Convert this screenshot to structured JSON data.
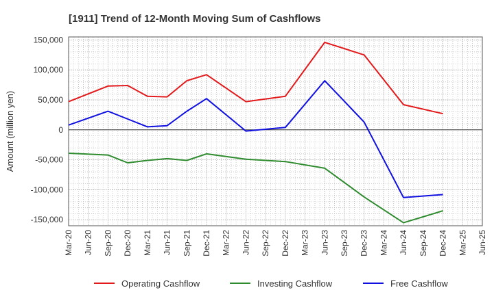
{
  "chart_data": {
    "type": "line",
    "title": "[1911]  Trend of 12-Month Moving Sum of Cashflows",
    "xlabel": "",
    "ylabel": "Amount (million yen)",
    "ylim": [
      -160000,
      155000
    ],
    "yticks": [
      150000,
      100000,
      50000,
      0,
      -50000,
      -100000,
      -150000
    ],
    "ytick_labels": [
      "150,000",
      "100,000",
      "50,000",
      "0",
      "-50,000",
      "-100,000",
      "-150,000"
    ],
    "categories": [
      "Mar-20",
      "Jun-20",
      "Sep-20",
      "Dec-20",
      "Mar-21",
      "Jun-21",
      "Sep-21",
      "Dec-21",
      "Mar-22",
      "Jun-22",
      "Sep-22",
      "Dec-22",
      "Mar-23",
      "Jun-23",
      "Sep-23",
      "Dec-23",
      "Mar-24",
      "Jun-24",
      "Sep-24",
      "Dec-24",
      "Mar-25",
      "Jun-25"
    ],
    "grid": true,
    "legend_position": "bottom",
    "series": [
      {
        "name": "Operating Cashflow",
        "color": "#e31a1c",
        "values": [
          47000,
          null,
          73000,
          74000,
          56000,
          55000,
          82000,
          92000,
          null,
          47000,
          null,
          56000,
          null,
          146000,
          null,
          125000,
          null,
          42000,
          null,
          27000,
          null,
          null
        ]
      },
      {
        "name": "Investing Cashflow",
        "color": "#2e8b2e",
        "values": [
          -39000,
          null,
          -42000,
          -55000,
          -51000,
          -48000,
          -51000,
          -40000,
          null,
          -49000,
          null,
          -53000,
          null,
          -64000,
          null,
          -112000,
          null,
          -155000,
          null,
          -135000,
          null,
          null
        ]
      },
      {
        "name": "Free Cashflow",
        "color": "#1010e0",
        "values": [
          8000,
          null,
          31000,
          18000,
          5000,
          7000,
          31000,
          52000,
          null,
          -2000,
          null,
          4000,
          null,
          82000,
          null,
          13000,
          null,
          -113000,
          null,
          -108000,
          null,
          null
        ]
      }
    ]
  }
}
